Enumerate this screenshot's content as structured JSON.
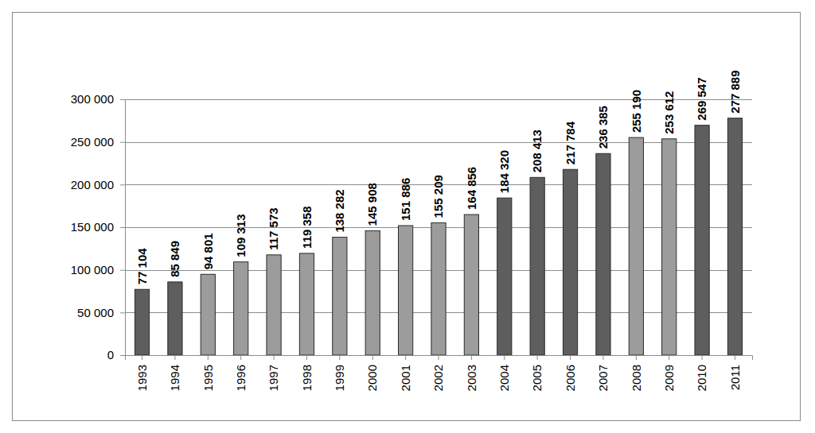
{
  "chart_data": {
    "type": "bar",
    "categories": [
      "1993",
      "1994",
      "1995",
      "1996",
      "1997",
      "1998",
      "1999",
      "2000",
      "2001",
      "2002",
      "2003",
      "2004",
      "2005",
      "2006",
      "2007",
      "2008",
      "2009",
      "2010",
      "2011"
    ],
    "values": [
      77104,
      85849,
      94801,
      109313,
      117573,
      119358,
      138282,
      145908,
      151886,
      155209,
      164856,
      184320,
      208413,
      217784,
      236385,
      255190,
      253612,
      269547,
      277889
    ],
    "value_labels": [
      "77 104",
      "85 849",
      "94 801",
      "109 313",
      "117 573",
      "119 358",
      "138 282",
      "145 908",
      "151 886",
      "155 209",
      "164 856",
      "184 320",
      "208 413",
      "217 784",
      "236 385",
      "255 190",
      "253 612",
      "269 547",
      "277 889"
    ],
    "colors": [
      "#5e5e5e",
      "#5e5e5e",
      "#9c9c9c",
      "#9c9c9c",
      "#9c9c9c",
      "#9c9c9c",
      "#9c9c9c",
      "#9c9c9c",
      "#9c9c9c",
      "#9c9c9c",
      "#9c9c9c",
      "#5e5e5e",
      "#5e5e5e",
      "#5e5e5e",
      "#5e5e5e",
      "#9c9c9c",
      "#9c9c9c",
      "#5e5e5e",
      "#5e5e5e"
    ],
    "ylim": [
      0,
      300000
    ],
    "yticks": [
      0,
      {
        "value": 50000,
        "label": "50 000"
      },
      {
        "value": 100000,
        "label": "100 000"
      },
      {
        "value": 150000,
        "label": "150 000"
      },
      {
        "value": 200000,
        "label": "200 000"
      },
      {
        "value": 250000,
        "label": "250 000"
      },
      {
        "value": 300000,
        "label": "300 000"
      }
    ],
    "grid": true,
    "data_labels": true
  }
}
